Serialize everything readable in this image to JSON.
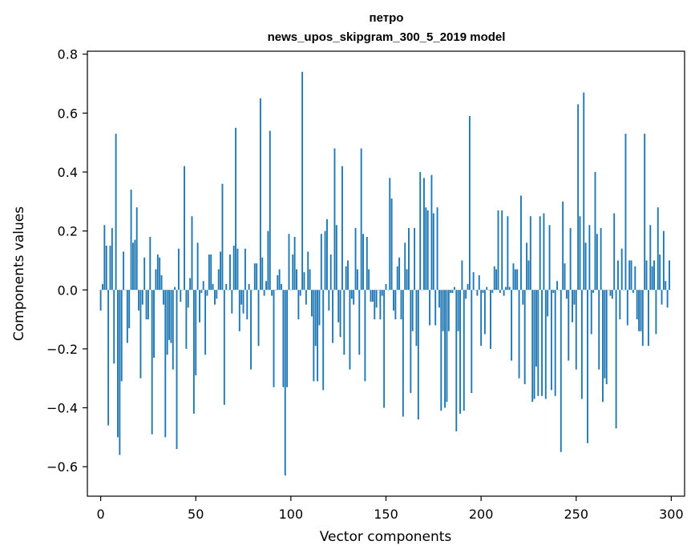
{
  "chart_data": {
    "type": "bar",
    "title_line1": "петро",
    "title_line2": "news_upos_skipgram_300_5_2019 model",
    "xlabel": "Vector components",
    "ylabel": "Components values",
    "xlim": [
      -7,
      307
    ],
    "ylim": [
      -0.7,
      0.81
    ],
    "xticks": [
      0,
      50,
      100,
      150,
      200,
      250,
      300
    ],
    "xtick_labels": [
      "0",
      "50",
      "100",
      "150",
      "200",
      "250",
      "300"
    ],
    "yticks": [
      -0.6,
      -0.4,
      -0.2,
      0.0,
      0.2,
      0.4,
      0.6,
      0.8
    ],
    "ytick_labels": [
      "−0.6",
      "−0.4",
      "−0.2",
      "0.0",
      "0.2",
      "0.4",
      "0.6",
      "0.8"
    ],
    "bar_color": "#1f77b4",
    "values": [
      -0.07,
      0.02,
      0.22,
      0.15,
      -0.46,
      0.15,
      0.21,
      -0.25,
      0.53,
      -0.5,
      -0.56,
      -0.31,
      0.13,
      0.0,
      -0.18,
      -0.13,
      0.34,
      0.16,
      0.17,
      0.28,
      -0.07,
      -0.3,
      -0.05,
      0.11,
      -0.1,
      -0.1,
      0.18,
      -0.49,
      -0.23,
      0.07,
      0.12,
      0.11,
      0.05,
      -0.05,
      -0.5,
      -0.22,
      -0.17,
      -0.18,
      -0.27,
      0.01,
      -0.54,
      0.14,
      -0.04,
      0.0,
      0.42,
      -0.2,
      -0.06,
      0.04,
      0.25,
      -0.42,
      -0.29,
      0.16,
      -0.11,
      -0.01,
      0.03,
      -0.22,
      -0.02,
      0.12,
      0.12,
      0.02,
      -0.05,
      -0.03,
      0.07,
      0.13,
      0.36,
      -0.39,
      0.02,
      0.0,
      0.12,
      -0.08,
      0.15,
      0.55,
      0.14,
      -0.14,
      -0.05,
      -0.08,
      0.14,
      -0.1,
      0.02,
      -0.27,
      0.0,
      0.09,
      0.09,
      -0.19,
      0.65,
      0.11,
      -0.02,
      0.03,
      0.2,
      0.54,
      -0.02,
      -0.33,
      0.0,
      0.05,
      0.07,
      0.02,
      -0.33,
      -0.63,
      -0.33,
      0.19,
      0.0,
      0.12,
      0.18,
      0.07,
      -0.1,
      -0.02,
      0.74,
      0.06,
      -0.05,
      0.13,
      0.07,
      -0.09,
      -0.31,
      -0.19,
      -0.31,
      -0.12,
      0.19,
      -0.34,
      0.2,
      0.24,
      -0.07,
      0.12,
      -0.18,
      0.48,
      0.22,
      -0.11,
      -0.16,
      0.42,
      -0.22,
      0.08,
      0.1,
      -0.27,
      -0.03,
      -0.05,
      0.21,
      0.07,
      -0.22,
      0.48,
      0.19,
      -0.31,
      0.18,
      0.07,
      -0.04,
      -0.04,
      -0.1,
      -0.06,
      0.0,
      -0.1,
      -0.02,
      -0.4,
      0.02,
      0.0,
      0.38,
      0.31,
      -0.07,
      -0.1,
      0.08,
      0.11,
      -0.1,
      -0.43,
      0.16,
      0.07,
      0.21,
      -0.35,
      -0.14,
      0.21,
      -0.19,
      -0.44,
      0.4,
      0.0,
      0.38,
      0.28,
      0.27,
      -0.12,
      0.39,
      0.26,
      -0.12,
      0.28,
      -0.06,
      -0.41,
      -0.14,
      -0.4,
      -0.38,
      -0.14,
      -0.01,
      -0.01,
      0.01,
      -0.48,
      -0.14,
      -0.42,
      0.1,
      -0.41,
      -0.03,
      0.02,
      0.59,
      -0.35,
      0.06,
      0.0,
      -0.02,
      0.05,
      -0.19,
      -0.01,
      -0.15,
      0.01,
      0.0,
      -0.2,
      -0.01,
      0.08,
      0.07,
      0.27,
      -0.01,
      0.27,
      -0.02,
      0.01,
      0.25,
      0.01,
      -0.24,
      0.09,
      0.07,
      0.07,
      -0.3,
      0.32,
      -0.05,
      -0.32,
      0.16,
      0.1,
      0.25,
      -0.38,
      -0.37,
      -0.26,
      -0.36,
      0.25,
      -0.36,
      0.26,
      -0.37,
      -0.09,
      0.22,
      -0.34,
      -0.01,
      -0.36,
      0.03,
      0.0,
      -0.55,
      0.3,
      0.09,
      -0.03,
      -0.24,
      0.21,
      -0.11,
      -0.05,
      -0.27,
      0.63,
      0.25,
      -0.37,
      0.67,
      0.16,
      -0.52,
      0.22,
      -0.15,
      -0.01,
      0.4,
      0.19,
      -0.27,
      0.21,
      -0.38,
      -0.3,
      -0.32,
      0.0,
      -0.02,
      -0.03,
      0.26,
      -0.47,
      0.1,
      -0.1,
      0.14,
      0.0,
      0.53,
      -0.12,
      0.1,
      0.1,
      -0.01,
      0.08,
      -0.1,
      -0.14,
      -0.14,
      -0.19,
      0.53,
      0.1,
      -0.19,
      0.22,
      0.08,
      0.1,
      -0.15,
      0.28,
      0.12,
      -0.05,
      0.2,
      0.03,
      -0.06,
      0.1
    ]
  }
}
